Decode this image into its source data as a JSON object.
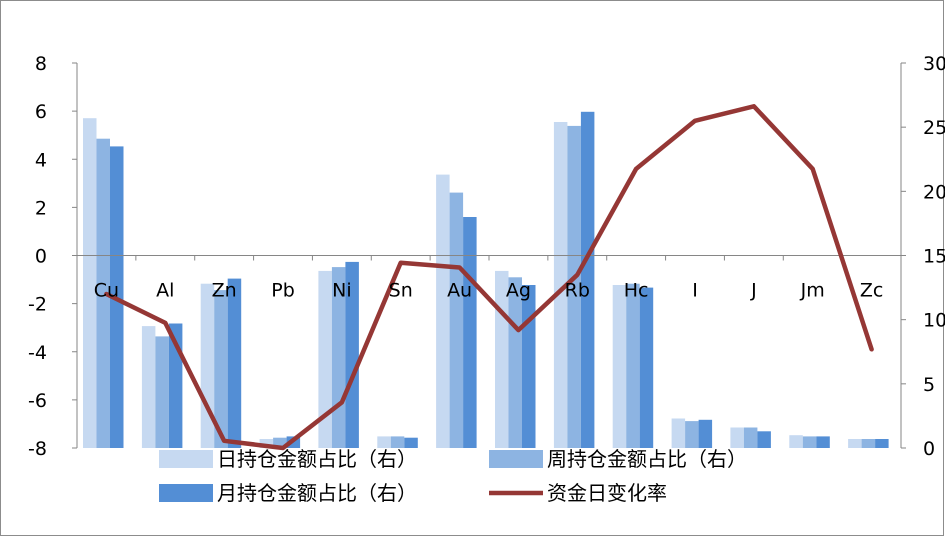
{
  "chart_data": {
    "type": "bar+line",
    "categories": [
      "Cu",
      "Al",
      "Zn",
      "Pb",
      "Ni",
      "Sn",
      "Au",
      "Ag",
      "Rb",
      "Hc",
      "I",
      "J",
      "Jm",
      "Zc"
    ],
    "series": [
      {
        "name": "日持仓金额占比（右）",
        "type": "bar",
        "axis": "right",
        "color": "#c6d9f1",
        "values": [
          25.7,
          9.5,
          12.8,
          0.7,
          13.8,
          0.9,
          21.3,
          13.8,
          25.4,
          12.7,
          2.3,
          1.6,
          1.0,
          0.7
        ]
      },
      {
        "name": "周持仓金额占比（右）",
        "type": "bar",
        "axis": "right",
        "color": "#8db4e2",
        "values": [
          24.1,
          8.7,
          12.3,
          0.8,
          14.1,
          0.9,
          19.9,
          13.3,
          25.1,
          12.8,
          2.1,
          1.6,
          0.9,
          0.7
        ]
      },
      {
        "name": "月持仓金额占比（右）",
        "type": "bar",
        "axis": "right",
        "color": "#538ed5",
        "values": [
          23.5,
          9.7,
          13.2,
          0.9,
          14.5,
          0.8,
          18.0,
          12.7,
          26.2,
          12.5,
          2.2,
          1.3,
          0.9,
          0.7
        ]
      },
      {
        "name": "资金日变化率",
        "type": "line",
        "axis": "left",
        "color": "#953735",
        "values": [
          -1.6,
          -2.8,
          -7.7,
          -8.4,
          -6.1,
          -0.3,
          -0.5,
          -3.1,
          -0.8,
          3.6,
          5.6,
          6.2,
          3.6,
          -3.9
        ]
      }
    ],
    "y_left": {
      "min": -8,
      "max": 8,
      "step": 2,
      "ticks": [
        "8",
        "6",
        "4",
        "2",
        "0",
        "-2",
        "-4",
        "-6",
        "-8"
      ]
    },
    "y_right": {
      "min": 0,
      "max": 30,
      "step": 5,
      "ticks": [
        "30",
        "25",
        "20",
        "15",
        "10",
        "5",
        "0"
      ]
    },
    "legend": {
      "position": "bottom"
    },
    "grid": false
  }
}
